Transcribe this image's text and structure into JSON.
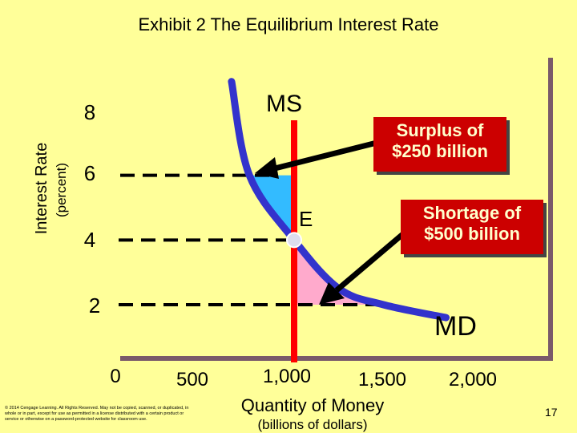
{
  "chart_data": {
    "type": "line",
    "title": "Exhibit 2 The Equilibrium Interest Rate",
    "ylabel": "Interest Rate",
    "ylabel_sub": "(percent)",
    "xlabel": "Quantity of Money",
    "xlabel_sub": "(billions of dollars)",
    "xlim": [
      0,
      2000
    ],
    "ylim": [
      1,
      9
    ],
    "x_ticks": [
      "0",
      "500",
      "1,000",
      "1,500",
      "2,000"
    ],
    "y_ticks": [
      "2",
      "4",
      "6",
      "8"
    ],
    "grid": false,
    "series": [
      {
        "name": "MS",
        "type": "vertical",
        "x": 1000,
        "color": "#ff0000"
      },
      {
        "name": "MD",
        "color": "#3333cc",
        "points": [
          [
            650,
            8.9
          ],
          [
            750,
            6.0
          ],
          [
            1000,
            4.0
          ],
          [
            1250,
            2.5
          ],
          [
            1500,
            2.0
          ],
          [
            1850,
            1.6
          ]
        ]
      }
    ],
    "equilibrium": {
      "label": "E",
      "x": 1000,
      "y": 4
    },
    "annotations": [
      {
        "text": "Surplus of $250 billion",
        "at_rate": 6,
        "from": 750,
        "to": 1000,
        "color": "#33bbff"
      },
      {
        "text": "Shortage of $500 billion",
        "at_rate": 2,
        "from": 1000,
        "to": 1500,
        "color": "#ffaacc"
      }
    ]
  },
  "tick_labels": {
    "x0": "0",
    "x500": "500",
    "x1000": "1,000",
    "x1500": "1,500",
    "x2000": "2,000",
    "y2": "2",
    "y4": "4",
    "y6": "6",
    "y8": "8"
  },
  "curve_labels": {
    "ms": "MS",
    "md": "MD",
    "e": "E"
  },
  "callouts": {
    "surplus_line1": "Surplus of",
    "surplus_line2": "$250 billion",
    "shortage_line1": "Shortage of",
    "shortage_line2": "$500 billion"
  },
  "footer": {
    "copyright": "© 2014 Cengage Learning. All Rights Reserved. May not be copied, scanned, or duplicated, in whole or in part, except for use as permitted in a license distributed with a certain product or service or otherwise on a password-protected website for classroom use.",
    "page_number": "17"
  },
  "colors": {
    "background": "#ffff99",
    "ms": "#ff0000",
    "md": "#3333cc",
    "callout": "#cc0000",
    "surplus_fill": "#33bbff",
    "shortage_fill": "#ffaacc"
  }
}
